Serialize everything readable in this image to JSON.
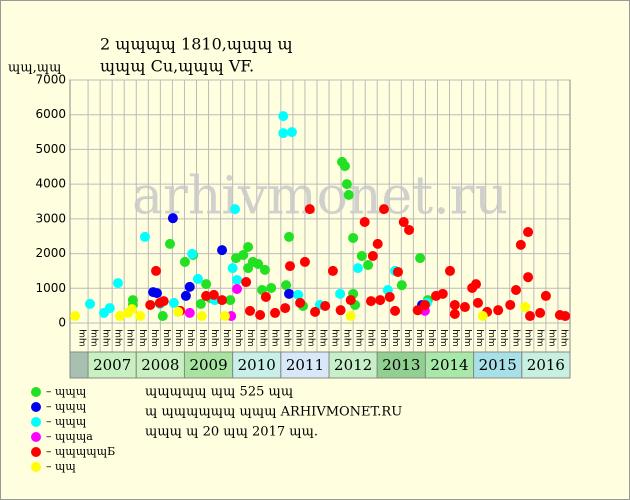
{
  "chart_data": {
    "type": "scatter",
    "title": "2 ɰɰɰɰ 1810,ɰɰɰ ɰ",
    "subtitle": "ɰɰɰ Cu,ɰɰɰ VF.",
    "y_label": "ɰɰ,ɰɰ",
    "watermark": "arhivmonet.ru",
    "notes": [
      "ɰɰɰɰɰ ɰɰ 525 ɰɰ",
      "ɰ ɰɰɰɰɰɰ ɰɰɰ ARHIVMONET.RU",
      "ɰɰɰ ɰ 20 ɰɰ 2017 ɰɰ."
    ],
    "xlim": [
      2006.625,
      2017.0
    ],
    "xticks": [
      2007,
      2008,
      2009,
      2010,
      2011,
      2012,
      2013,
      2014,
      2015,
      2016
    ],
    "year_colors": [
      "#c8f0c0",
      "#c8f0c0",
      "#a8e4a0",
      "#c8f0e8",
      "#d8e8f8",
      "#c8f0c8",
      "#90d090",
      "#a8e8a8",
      "#a8e0e8",
      "#c8f0e0"
    ],
    "quarter_labels": [
      "ɰɰ",
      "ɰɰ",
      "ɰɰ",
      "ɰɰ",
      "ɰɰ",
      "ɰɰ",
      "ɰɰ",
      "ɰɰ",
      "ɰɰ",
      "ɰɰ",
      "ɰɰ",
      "ɰɰ",
      "ɰɰ",
      "ɰɰ",
      "ɰɰ",
      "ɰɰ",
      "ɰɰ",
      "ɰɰ",
      "ɰɰ",
      "ɰɰ",
      "ɰɰ",
      "ɰɰ",
      "ɰɰ",
      "ɰɰ",
      "ɰɰ",
      "ɰɰ",
      "ɰɰ",
      "ɰɰ",
      "ɰɰ",
      "ɰɰ",
      "ɰɰ",
      "ɰɰ",
      "ɰɰ",
      "ɰɰ",
      "ɰɰ",
      "ɰɰ",
      "ɰɰ",
      "ɰɰ",
      "ɰɰ",
      "ɰɰ",
      "ɰɰ"
    ],
    "ylim": [
      0,
      7000
    ],
    "yticks": [
      0,
      1000,
      2000,
      3000,
      4000,
      5000,
      6000,
      7000
    ],
    "grid": true,
    "series": [
      {
        "name": "– ɰɰɰ",
        "color": "#22e022",
        "x": [
          2007.93,
          2007.93,
          2008.7,
          2009.01,
          2009.18,
          2009.34,
          2009.45,
          2009.53,
          2010.07,
          2010.22,
          2010.32,
          2010.32,
          2010.42,
          2010.53,
          2010.67,
          2010.61,
          2010.8,
          2011.11,
          2011.17,
          2011.46,
          2012.27,
          2012.33,
          2012.37,
          2012.41,
          2012.5,
          2012.5,
          2012.68,
          2012.81,
          2013.51,
          2013.89,
          2014.05,
          2012.54,
          2009.95,
          2008.55
        ],
        "values": [
          520,
          660,
          2280,
          1760,
          1960,
          550,
          1120,
          720,
          1870,
          1960,
          2190,
          1580,
          1760,
          1700,
          1530,
          950,
          1010,
          1090,
          2480,
          490,
          4640,
          4520,
          4000,
          3690,
          2450,
          840,
          1930,
          1670,
          1090,
          1870,
          660,
          520,
          660,
          200
        ]
      },
      {
        "name": "– ɰɰɰ",
        "color": "#0000ee",
        "x": [
          2008.76,
          2008.35,
          2008.43,
          2009.03,
          2009.11,
          2009.78,
          2011.17,
          2013.93
        ],
        "values": [
          3020,
          890,
          860,
          780,
          1040,
          2100,
          840,
          520
        ]
      },
      {
        "name": "– ɰɰɰ",
        "color": "#00ffff",
        "x": [
          2011.05,
          2011.05,
          2011.23,
          2010.05,
          2008.18,
          2009.16,
          2010.0,
          2010.09,
          2007.62,
          2009.28,
          2008.78,
          2007.04,
          2007.33,
          2012.23,
          2012.6,
          2013.37,
          2013.22,
          2014.03,
          2007.45,
          2011.36,
          2008.49,
          2009.63,
          2011.81
        ],
        "values": [
          5960,
          5470,
          5500,
          3280,
          2480,
          1990,
          1580,
          1240,
          1150,
          1270,
          580,
          550,
          290,
          840,
          1580,
          1500,
          950,
          580,
          430,
          810,
          550,
          660,
          520
        ]
      },
      {
        "name": "– ɰɰɰa",
        "color": "#ff00ff",
        "x": [
          2010.09,
          2009.11,
          2013.99,
          2009.97
        ],
        "values": [
          980,
          290,
          350,
          200
        ]
      },
      {
        "name": "– ɰɰɰɰɰБ",
        "color": "#ff0000",
        "x": [
          2008.41,
          2008.49,
          2008.57,
          2009.45,
          2010.28,
          2010.69,
          2011.19,
          2011.5,
          2011.6,
          2012.08,
          2012.74,
          2012.91,
          2013.01,
          2013.14,
          2013.55,
          2013.66,
          2013.43,
          2013.26,
          2013.06,
          2012.87,
          2014.22,
          2014.36,
          2014.51,
          2014.82,
          2014.97,
          2015.05,
          2015.09,
          2015.88,
          2015.98,
          2016.13,
          2016.13,
          2016.5,
          2016.38,
          2016.79,
          2015.76,
          2015.51,
          2015.28,
          2014.61,
          2013.99,
          2013.84,
          2012.45,
          2012.24,
          2011.92,
          2011.71,
          2011.4,
          2011.09,
          2010.88,
          2010.57,
          2010.36,
          2009.78,
          2009.61,
          2008.91,
          2008.29,
          2013.37,
          2014.61,
          2016.17,
          2016.9
        ],
        "values": [
          1500,
          580,
          630,
          780,
          1180,
          750,
          1640,
          1760,
          3280,
          1500,
          2910,
          1930,
          2280,
          3280,
          2910,
          2680,
          1470,
          750,
          660,
          630,
          780,
          840,
          1500,
          460,
          1010,
          1120,
          580,
          950,
          2250,
          2620,
          1320,
          780,
          290,
          230,
          520,
          370,
          320,
          260,
          520,
          370,
          660,
          370,
          490,
          320,
          580,
          430,
          290,
          230,
          350,
          660,
          810,
          350,
          520,
          350,
          520,
          200,
          200
        ]
      },
      {
        "name": "– ɰɰ",
        "color": "#ffff00",
        "x": [
          2006.73,
          2007.83,
          2007.91,
          2007.66,
          2008.87,
          2009.36,
          2009.84,
          2012.45,
          2015.19,
          2016.07,
          2008.08
        ],
        "values": [
          200,
          290,
          400,
          200,
          320,
          200,
          200,
          200,
          200,
          460,
          200
        ]
      }
    ]
  }
}
